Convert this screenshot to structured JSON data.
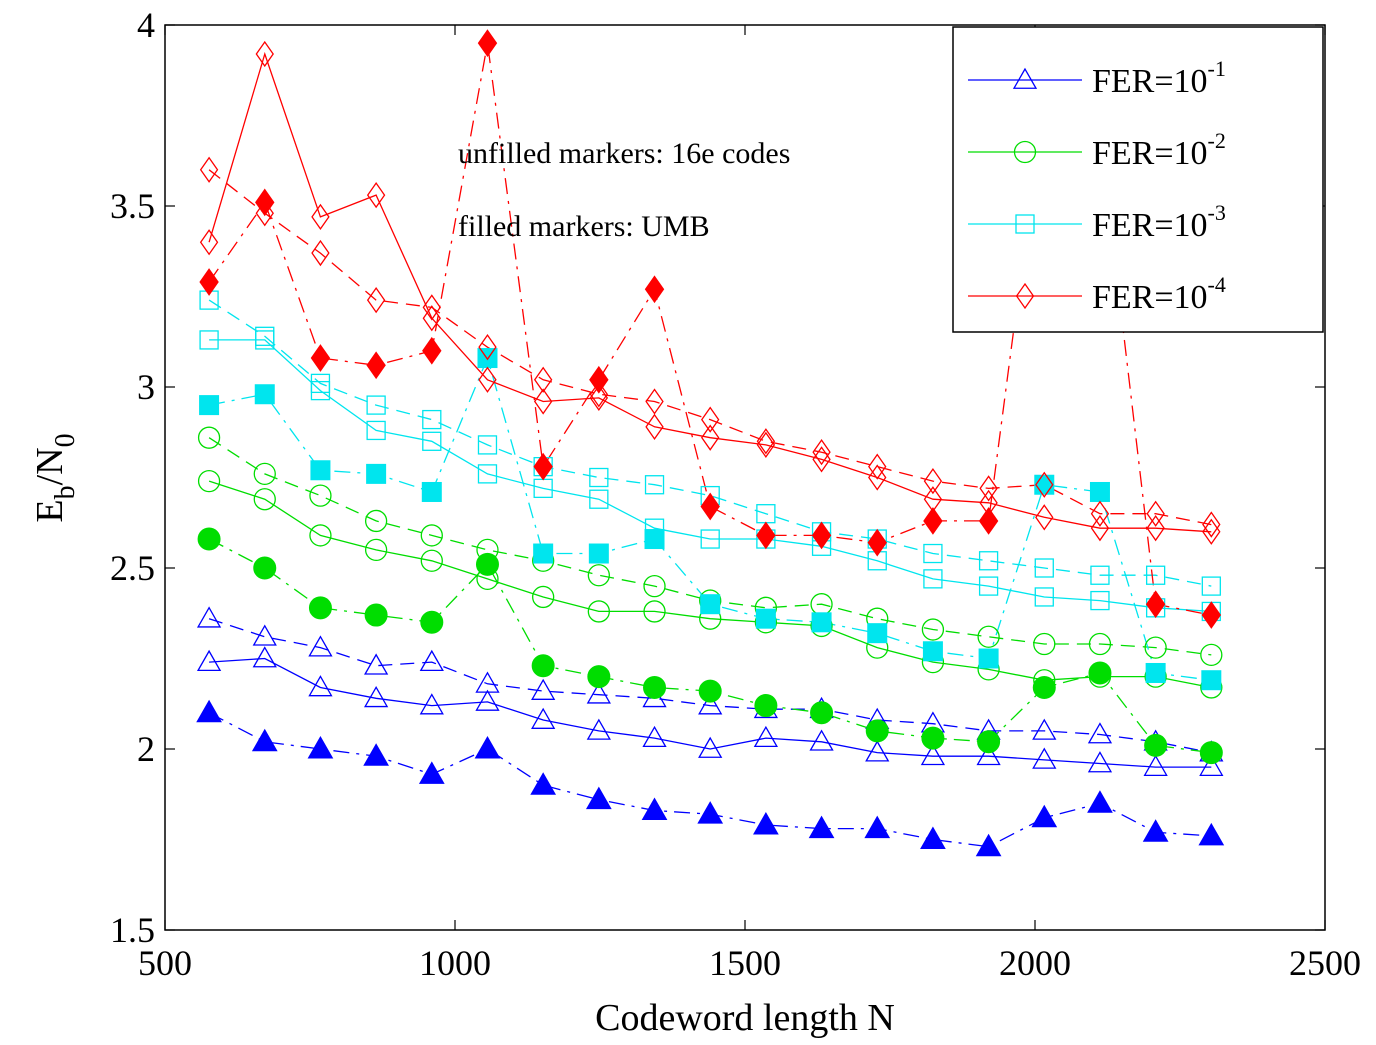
{
  "chart_data": {
    "type": "line",
    "xlabel": "Codeword length N",
    "ylabel": "E_b/N_0",
    "ylabel_parts": {
      "base1": "E",
      "sub1": "b",
      "mid": "/N",
      "sub2": "0"
    },
    "xlim": [
      500,
      2500
    ],
    "ylim": [
      1.5,
      4
    ],
    "xticks": [
      500,
      1000,
      1500,
      2000,
      2500
    ],
    "yticks": [
      1.5,
      2,
      2.5,
      3,
      3.5,
      4
    ],
    "ytick_labels": [
      "1.5",
      "2",
      "2.5",
      "3",
      "3.5",
      "4"
    ],
    "grid": false,
    "legend_position": "top-right",
    "annotations": [
      "unfilled markers: 16e codes",
      "filled markers: UMB"
    ],
    "legend": [
      {
        "label": "FER=10",
        "exp": "-1",
        "color": "#0000ff",
        "marker": "triangle"
      },
      {
        "label": "FER=10",
        "exp": "-2",
        "color": "#00dd00",
        "marker": "circle"
      },
      {
        "label": "FER=10",
        "exp": "-3",
        "color": "#00e5ee",
        "marker": "square"
      },
      {
        "label": "FER=10",
        "exp": "-4",
        "color": "#ff0000",
        "marker": "diamond"
      }
    ],
    "series": [
      {
        "group": 0,
        "filled": false,
        "dash": "solid",
        "color": "#0000ff",
        "marker": "triangle",
        "x": [
          576,
          672,
          768,
          864,
          960,
          1056,
          1152,
          1248,
          1344,
          1440,
          1536,
          1632,
          1728,
          1824,
          1920,
          2016,
          2112,
          2208,
          2304
        ],
        "y": [
          2.24,
          2.25,
          2.17,
          2.14,
          2.12,
          2.13,
          2.08,
          2.05,
          2.03,
          2.0,
          2.03,
          2.02,
          1.99,
          1.98,
          1.98,
          1.97,
          1.96,
          1.95,
          1.95
        ]
      },
      {
        "group": 0,
        "filled": false,
        "dash": "dashed",
        "color": "#0000ff",
        "marker": "triangle",
        "x": [
          576,
          672,
          768,
          864,
          960,
          1056,
          1152,
          1248,
          1344,
          1440,
          1536,
          1632,
          1728,
          1824,
          1920,
          2016,
          2112,
          2208,
          2304
        ],
        "y": [
          2.36,
          2.31,
          2.28,
          2.23,
          2.24,
          2.18,
          2.16,
          2.15,
          2.14,
          2.12,
          2.11,
          2.11,
          2.08,
          2.07,
          2.05,
          2.05,
          2.04,
          2.02,
          1.99
        ]
      },
      {
        "group": 0,
        "filled": true,
        "dash": "dashdot",
        "color": "#0000ff",
        "marker": "triangle",
        "x": [
          576,
          672,
          768,
          864,
          960,
          1056,
          1152,
          1248,
          1344,
          1440,
          1536,
          1632,
          1728,
          1824,
          1920,
          2016,
          2112,
          2208,
          2304
        ],
        "y": [
          2.1,
          2.02,
          2.0,
          1.98,
          1.93,
          2.0,
          1.9,
          1.86,
          1.83,
          1.82,
          1.79,
          1.78,
          1.78,
          1.75,
          1.73,
          1.81,
          1.85,
          1.77,
          1.76
        ]
      },
      {
        "group": 1,
        "filled": false,
        "dash": "solid",
        "color": "#00dd00",
        "marker": "circle",
        "x": [
          576,
          672,
          768,
          864,
          960,
          1056,
          1152,
          1248,
          1344,
          1440,
          1536,
          1632,
          1728,
          1824,
          1920,
          2016,
          2112,
          2208,
          2304
        ],
        "y": [
          2.74,
          2.69,
          2.59,
          2.55,
          2.52,
          2.47,
          2.42,
          2.38,
          2.38,
          2.36,
          2.35,
          2.34,
          2.28,
          2.24,
          2.22,
          2.19,
          2.2,
          2.2,
          2.17
        ]
      },
      {
        "group": 1,
        "filled": false,
        "dash": "dashed",
        "color": "#00dd00",
        "marker": "circle",
        "x": [
          576,
          672,
          768,
          864,
          960,
          1056,
          1152,
          1248,
          1344,
          1440,
          1536,
          1632,
          1728,
          1824,
          1920,
          2016,
          2112,
          2208,
          2304
        ],
        "y": [
          2.86,
          2.76,
          2.7,
          2.63,
          2.59,
          2.55,
          2.52,
          2.48,
          2.45,
          2.41,
          2.39,
          2.4,
          2.36,
          2.33,
          2.31,
          2.29,
          2.29,
          2.28,
          2.26
        ]
      },
      {
        "group": 1,
        "filled": true,
        "dash": "dashdot",
        "color": "#00dd00",
        "marker": "circle",
        "x": [
          576,
          672,
          768,
          864,
          960,
          1056,
          1152,
          1248,
          1344,
          1440,
          1536,
          1632,
          1728,
          1824,
          1920,
          2016,
          2112,
          2208,
          2304
        ],
        "y": [
          2.58,
          2.5,
          2.39,
          2.37,
          2.35,
          2.51,
          2.23,
          2.2,
          2.17,
          2.16,
          2.12,
          2.1,
          2.05,
          2.03,
          2.02,
          2.17,
          2.21,
          2.01,
          1.99
        ]
      },
      {
        "group": 2,
        "filled": false,
        "dash": "solid",
        "color": "#00e5ee",
        "marker": "square",
        "x": [
          576,
          672,
          768,
          864,
          960,
          1056,
          1152,
          1248,
          1344,
          1440,
          1536,
          1632,
          1728,
          1824,
          1920,
          2016,
          2112,
          2208,
          2304
        ],
        "y": [
          3.13,
          3.13,
          2.99,
          2.88,
          2.85,
          2.76,
          2.72,
          2.69,
          2.61,
          2.58,
          2.58,
          2.56,
          2.52,
          2.47,
          2.45,
          2.42,
          2.41,
          2.39,
          2.38
        ]
      },
      {
        "group": 2,
        "filled": false,
        "dash": "dashed",
        "color": "#00e5ee",
        "marker": "square",
        "x": [
          576,
          672,
          768,
          864,
          960,
          1056,
          1152,
          1248,
          1344,
          1440,
          1536,
          1632,
          1728,
          1824,
          1920,
          2016,
          2112,
          2208,
          2304
        ],
        "y": [
          3.24,
          3.14,
          3.01,
          2.95,
          2.91,
          2.84,
          2.78,
          2.75,
          2.73,
          2.7,
          2.65,
          2.6,
          2.58,
          2.54,
          2.52,
          2.5,
          2.48,
          2.48,
          2.45
        ]
      },
      {
        "group": 2,
        "filled": true,
        "dash": "dashdot",
        "color": "#00e5ee",
        "marker": "square",
        "x": [
          576,
          672,
          768,
          864,
          960,
          1056,
          1152,
          1248,
          1344,
          1440,
          1536,
          1632,
          1728,
          1824,
          1920,
          2016,
          2112,
          2208,
          2304
        ],
        "y": [
          2.95,
          2.98,
          2.77,
          2.76,
          2.71,
          3.08,
          2.54,
          2.54,
          2.58,
          2.4,
          2.36,
          2.35,
          2.32,
          2.27,
          2.25,
          2.73,
          2.71,
          2.21,
          2.19
        ]
      },
      {
        "group": 3,
        "filled": false,
        "dash": "solid",
        "color": "#ff0000",
        "marker": "diamond",
        "x": [
          576,
          672,
          768,
          864,
          960,
          1056,
          1152,
          1248,
          1344,
          1440,
          1536,
          1632,
          1728,
          1824,
          1920,
          2016,
          2112,
          2208,
          2304
        ],
        "y": [
          3.4,
          3.92,
          3.47,
          3.53,
          3.19,
          3.02,
          2.96,
          2.97,
          2.89,
          2.86,
          2.84,
          2.8,
          2.75,
          2.69,
          2.68,
          2.64,
          2.61,
          2.61,
          2.6
        ]
      },
      {
        "group": 3,
        "filled": false,
        "dash": "dashed",
        "color": "#ff0000",
        "marker": "diamond",
        "x": [
          576,
          672,
          768,
          864,
          960,
          1056,
          1152,
          1248,
          1344,
          1440,
          1536,
          1632,
          1728,
          1824,
          1920,
          2016,
          2112,
          2208,
          2304
        ],
        "y": [
          3.6,
          3.48,
          3.37,
          3.24,
          3.22,
          3.11,
          3.02,
          2.98,
          2.96,
          2.91,
          2.85,
          2.82,
          2.78,
          2.74,
          2.72,
          2.73,
          2.65,
          2.65,
          2.62
        ]
      },
      {
        "group": 3,
        "filled": true,
        "dash": "dashdot",
        "color": "#ff0000",
        "marker": "diamond",
        "x": [
          576,
          672,
          768,
          864,
          960,
          1056,
          1152,
          1248,
          1344,
          1440,
          1536,
          1632,
          1728,
          1824,
          1920,
          2016,
          2112,
          2208,
          2304
        ],
        "y": [
          3.29,
          3.51,
          3.08,
          3.06,
          3.1,
          3.95,
          2.78,
          3.02,
          3.27,
          2.67,
          2.59,
          2.59,
          2.57,
          2.63,
          2.63,
          3.8,
          3.7,
          2.4,
          2.37
        ]
      }
    ]
  }
}
